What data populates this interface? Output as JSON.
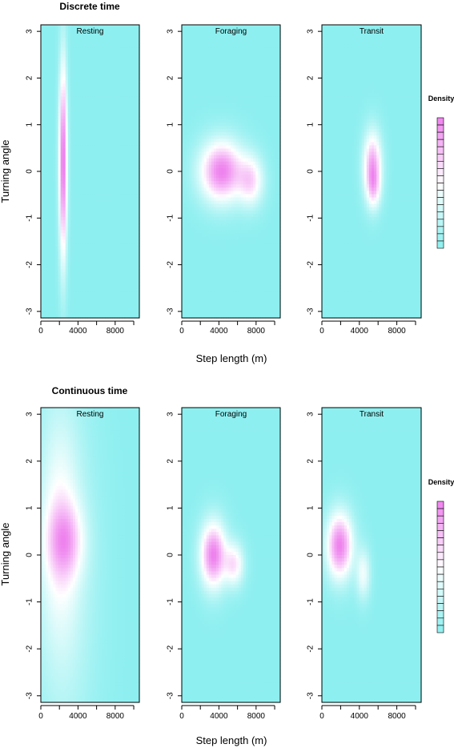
{
  "figure": {
    "colors": {
      "low": "#8EEFF0",
      "mid": "#FFFFFF",
      "high": "#EE82EE",
      "frame": "#000000"
    }
  },
  "chart_data": [
    {
      "type": "heatmap",
      "title": "Discrete time",
      "xlabel": "Step length (m)",
      "ylabel": "Turning angle",
      "xlim": [
        0,
        10600
      ],
      "ylim": [
        -3.14,
        3.14
      ],
      "xticks": [
        0,
        4000,
        8000
      ],
      "yticks": [
        -3,
        -2,
        -1,
        0,
        1,
        2,
        3
      ],
      "panels": [
        {
          "name": "Resting",
          "blobs": [
            {
              "cx": 2400,
              "cy": 0.2,
              "sx": 280,
              "sy": 1.35,
              "w": 1.0
            }
          ]
        },
        {
          "name": "Foraging",
          "blobs": [
            {
              "cx": 4300,
              "cy": 0.0,
              "sx": 1500,
              "sy": 0.42,
              "w": 0.9
            },
            {
              "cx": 7400,
              "cy": -0.2,
              "sx": 900,
              "sy": 0.35,
              "w": 0.5
            }
          ]
        },
        {
          "name": "Transit",
          "blobs": [
            {
              "cx": 5400,
              "cy": 0.15,
              "sx": 620,
              "sy": 0.45,
              "w": 0.9
            },
            {
              "cx": 5500,
              "cy": -0.35,
              "sx": 500,
              "sy": 0.3,
              "w": 0.5
            }
          ]
        }
      ],
      "legend": {
        "label": "Density",
        "placement": "right",
        "levels": 18
      }
    },
    {
      "type": "heatmap",
      "title": "Continuous time",
      "xlabel": "Step length (m)",
      "ylabel": "Turning angle",
      "xlim": [
        0,
        10600
      ],
      "ylim": [
        -3.14,
        3.14
      ],
      "xticks": [
        0,
        4000,
        8000
      ],
      "yticks": [
        -3,
        -2,
        -1,
        0,
        1,
        2,
        3
      ],
      "panels": [
        {
          "name": "Resting",
          "blobs": [
            {
              "cx": 2600,
              "cy": 0.3,
              "sx": 1300,
              "sy": 0.55,
              "w": 0.8
            },
            {
              "cx": 2000,
              "cy": 0.6,
              "sx": 1400,
              "sy": 1.6,
              "w": 0.45
            },
            {
              "cx": 2500,
              "cy": -0.5,
              "sx": 2200,
              "sy": 2.4,
              "w": 0.25
            }
          ]
        },
        {
          "name": "Foraging",
          "blobs": [
            {
              "cx": 3400,
              "cy": 0.0,
              "sx": 900,
              "sy": 0.45,
              "w": 0.85
            },
            {
              "cx": 5600,
              "cy": -0.2,
              "sx": 700,
              "sy": 0.3,
              "w": 0.45
            }
          ]
        },
        {
          "name": "Transit",
          "blobs": [
            {
              "cx": 1900,
              "cy": 0.2,
              "sx": 900,
              "sy": 0.45,
              "w": 0.85
            },
            {
              "cx": 4400,
              "cy": -0.4,
              "sx": 500,
              "sy": 0.35,
              "w": 0.3
            }
          ]
        }
      ],
      "legend": {
        "label": "Density",
        "placement": "right",
        "levels": 18
      }
    }
  ]
}
